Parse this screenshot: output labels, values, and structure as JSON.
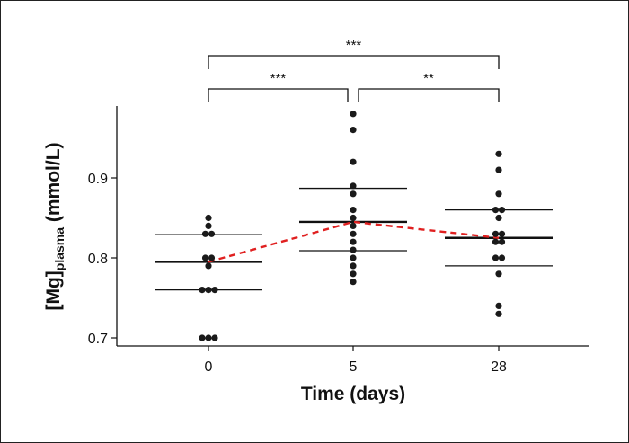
{
  "chart_data": {
    "type": "scatter",
    "xlabel": "Time (days)",
    "ylabel_main": "[Mg]",
    "ylabel_sub": "plasma",
    "ylabel_unit": " (mmol/L)",
    "categories": [
      "0",
      "5",
      "28"
    ],
    "y_ticks": [
      0.7,
      0.8,
      0.9
    ],
    "y_tick_labels": [
      "0.7",
      "0.8",
      "0.9"
    ],
    "ylim": [
      0.69,
      0.99
    ],
    "groups": [
      {
        "category": "0",
        "points": [
          0.85,
          0.84,
          0.83,
          0.83,
          0.8,
          0.8,
          0.79,
          0.76,
          0.76,
          0.76,
          0.7,
          0.7,
          0.7
        ],
        "mean": 0.795,
        "ci_upper": 0.829,
        "ci_lower": 0.76
      },
      {
        "category": "5",
        "points": [
          0.98,
          0.96,
          0.92,
          0.89,
          0.88,
          0.86,
          0.85,
          0.84,
          0.83,
          0.82,
          0.81,
          0.8,
          0.79,
          0.78,
          0.77
        ],
        "mean": 0.845,
        "ci_upper": 0.887,
        "ci_lower": 0.809
      },
      {
        "category": "28",
        "points": [
          0.93,
          0.91,
          0.88,
          0.86,
          0.86,
          0.85,
          0.83,
          0.83,
          0.82,
          0.82,
          0.8,
          0.8,
          0.78,
          0.74,
          0.73
        ],
        "mean": 0.825,
        "ci_upper": 0.86,
        "ci_lower": 0.79
      }
    ],
    "mean_line_color": "#e02020",
    "point_color": "#1a1a1a",
    "significance": [
      {
        "from": "0",
        "to": "28",
        "label": "***",
        "level": 2
      },
      {
        "from": "0",
        "to": "5",
        "label": "***",
        "level": 1
      },
      {
        "from": "5",
        "to": "28",
        "label": "**",
        "level": 1
      }
    ]
  }
}
